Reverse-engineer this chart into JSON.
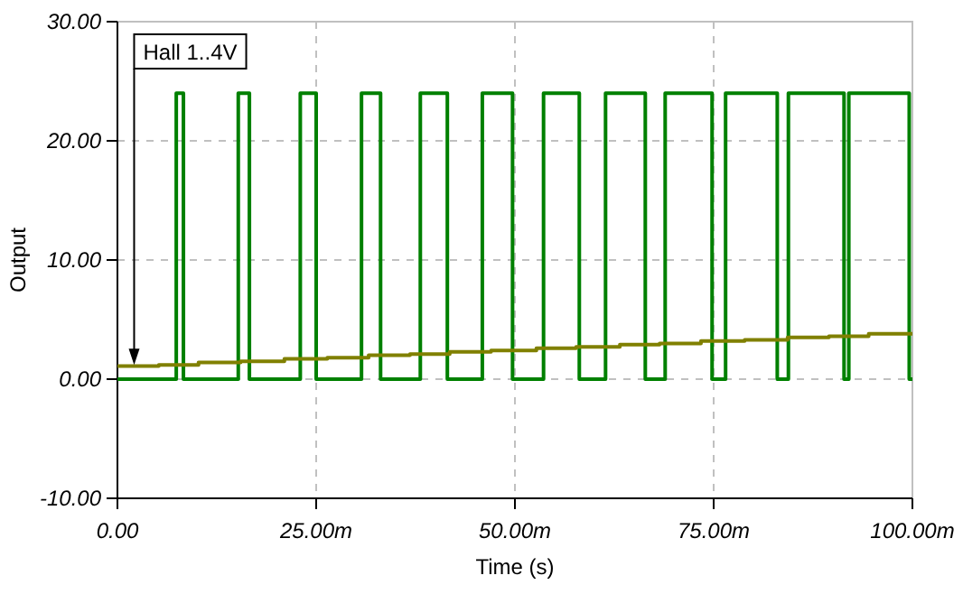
{
  "chart_data": {
    "type": "step",
    "xlabel": "Time (s)",
    "ylabel": "Output",
    "grid": true,
    "line_style": "solid",
    "marker": "none",
    "xlim": [
      0,
      100
    ],
    "ylim": [
      -10,
      30
    ],
    "xticks": [
      {
        "value": 0,
        "label": "0.00"
      },
      {
        "value": 25,
        "label": "25.00m"
      },
      {
        "value": 50,
        "label": "50.00m"
      },
      {
        "value": 75,
        "label": "75.00m"
      },
      {
        "value": 100,
        "label": "100.00m"
      }
    ],
    "yticks": [
      {
        "value": -10,
        "label": "-10.00"
      },
      {
        "value": 0,
        "label": "0.00"
      },
      {
        "value": 10,
        "label": "10.00"
      },
      {
        "value": 20,
        "label": "20.00"
      },
      {
        "value": 30,
        "label": "30.00"
      }
    ],
    "series": [
      {
        "color": "#008000",
        "x": [
          0,
          7.4,
          8.3,
          15.2,
          16.6,
          23,
          25,
          30.7,
          33.1,
          38.1,
          41.5,
          45.9,
          49.7,
          53.6,
          58.1,
          61.4,
          66.4,
          68.9,
          74.8,
          76.5,
          83,
          84.4,
          91.4,
          92,
          99.6,
          100
        ],
        "values": [
          0,
          24,
          0,
          24,
          0,
          24,
          0,
          24,
          0,
          24,
          0,
          24,
          0,
          24,
          0,
          24,
          0,
          24,
          0,
          24,
          0,
          24,
          0,
          24,
          0,
          0
        ]
      },
      {
        "color": "#808000",
        "x": [
          0,
          5.2,
          10.2,
          15.5,
          21,
          26.4,
          31.6,
          36.8,
          41.8,
          47,
          52.7,
          57.7,
          63.2,
          68.2,
          73.4,
          78.9,
          84.3,
          89.5,
          94.5,
          100
        ],
        "values": [
          1.1,
          1.2,
          1.4,
          1.5,
          1.7,
          1.8,
          2.0,
          2.1,
          2.3,
          2.4,
          2.6,
          2.7,
          2.9,
          3.0,
          3.2,
          3.3,
          3.5,
          3.6,
          3.8,
          3.8
        ]
      }
    ],
    "annotations": [
      {
        "text": "Hall 1..4V",
        "x": 2.1,
        "y": 1.2
      }
    ]
  }
}
